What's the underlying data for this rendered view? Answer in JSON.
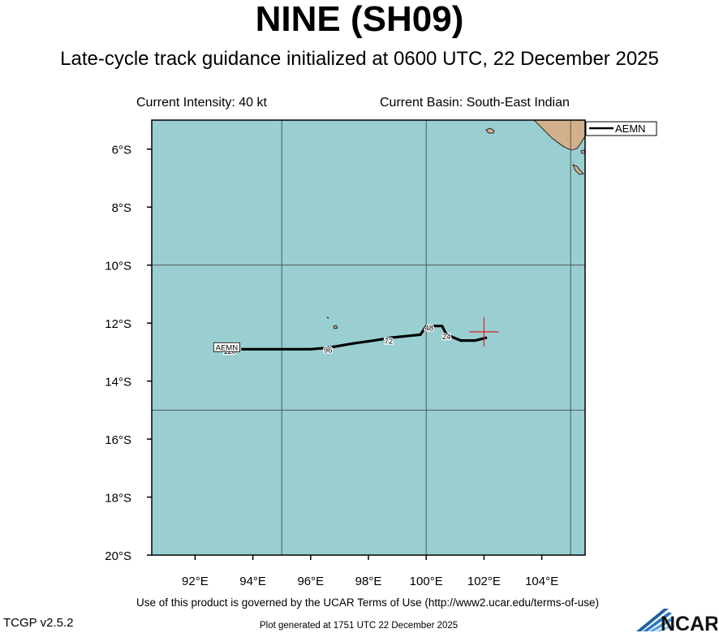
{
  "header": {
    "title": "NINE (SH09)",
    "subtitle": "Late-cycle track guidance initialized at 0600 UTC, 22 December 2025"
  },
  "info": {
    "current_intensity": "Current Intensity: 40 kt",
    "current_basin": "Current Basin: South-East Indian"
  },
  "map": {
    "lon_range": [
      90.5,
      105.5
    ],
    "lat_range": [
      -20,
      -5
    ],
    "ocean_color": "#99cfd0",
    "land_color": "#d3b08c",
    "gridlines_lon": [
      95,
      100,
      105
    ],
    "gridlines_lat": [
      -10,
      -15
    ],
    "lat_ticks": [
      {
        "value": -6,
        "label": "6°S"
      },
      {
        "value": -8,
        "label": "8°S"
      },
      {
        "value": -10,
        "label": "10°S"
      },
      {
        "value": -12,
        "label": "12°S"
      },
      {
        "value": -14,
        "label": "14°S"
      },
      {
        "value": -16,
        "label": "16°S"
      },
      {
        "value": -18,
        "label": "18°S"
      },
      {
        "value": -20,
        "label": "20°S"
      }
    ],
    "lon_ticks": [
      {
        "value": 92,
        "label": "92°E"
      },
      {
        "value": 94,
        "label": "94°E"
      },
      {
        "value": 96,
        "label": "96°E"
      },
      {
        "value": 98,
        "label": "98°E"
      },
      {
        "value": 100,
        "label": "100°E"
      },
      {
        "value": 102,
        "label": "102°E"
      },
      {
        "value": 104,
        "label": "104°E"
      }
    ],
    "current_position": {
      "lon": 102.0,
      "lat": -12.3,
      "color": "#e02020"
    }
  },
  "legend": {
    "entries": [
      {
        "name": "AEMN",
        "color": "#000000"
      }
    ]
  },
  "tracks": [
    {
      "model": "AEMN",
      "points": [
        {
          "lon": 102.1,
          "lat": -12.5
        },
        {
          "lon": 101.7,
          "lat": -12.6
        },
        {
          "lon": 101.2,
          "lat": -12.6
        },
        {
          "lon": 100.7,
          "lat": -12.4
        },
        {
          "lon": 100.55,
          "lat": -12.1
        },
        {
          "lon": 100.4,
          "lat": -12.1
        },
        {
          "lon": 100.0,
          "lat": -12.1
        },
        {
          "lon": 99.8,
          "lat": -12.4
        },
        {
          "lon": 98.8,
          "lat": -12.5
        },
        {
          "lon": 98.2,
          "lat": -12.6
        },
        {
          "lon": 97.5,
          "lat": -12.7
        },
        {
          "lon": 96.6,
          "lat": -12.85
        },
        {
          "lon": 96.0,
          "lat": -12.9
        },
        {
          "lon": 95.3,
          "lat": -12.9
        },
        {
          "lon": 94.5,
          "lat": -12.9
        },
        {
          "lon": 93.6,
          "lat": -12.9
        }
      ],
      "labels": [
        {
          "text": "24",
          "lon": 100.7,
          "lat": -12.45
        },
        {
          "text": "48",
          "lon": 100.1,
          "lat": -12.15
        },
        {
          "text": "72",
          "lon": 98.7,
          "lat": -12.6
        },
        {
          "text": "96",
          "lon": 96.6,
          "lat": -12.9
        },
        {
          "text": "120",
          "lon": 93.2,
          "lat": -12.95
        }
      ],
      "end_label": "AEMN"
    }
  ],
  "footer": {
    "terms": "Use of this product is governed by the UCAR Terms of Use (http://www2.ucar.edu/terms-of-use)",
    "version": "TCGP v2.5.2",
    "generated": "Plot generated at 1751 UTC   22 December 2025",
    "logo_text": "NCAR"
  }
}
